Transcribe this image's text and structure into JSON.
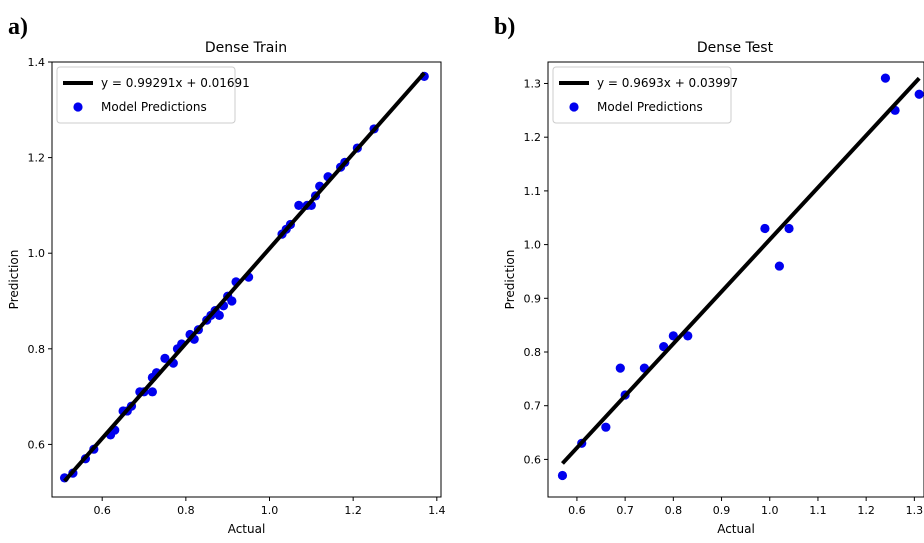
{
  "chart_data": [
    {
      "panel_label": "a)",
      "type": "scatter",
      "title": "Dense Train",
      "xlabel": "Actual",
      "ylabel": "Prediction",
      "xlim": [
        0.48,
        1.41
      ],
      "ylim": [
        0.49,
        1.4
      ],
      "xticks": [
        "0.6",
        "0.8",
        "1.0",
        "1.2",
        "1.4"
      ],
      "xtick_values": [
        0.6,
        0.8,
        1.0,
        1.2,
        1.4
      ],
      "yticks": [
        "0.6",
        "0.8",
        "1.0",
        "1.2",
        "1.4"
      ],
      "ytick_values": [
        0.6,
        0.8,
        1.0,
        1.2,
        1.4
      ],
      "legend_position": "top-left",
      "colors": {
        "points": "#0000ee",
        "fit_line": "#000000"
      },
      "series": [
        {
          "name": "Model Predictions",
          "points": [
            [
              0.51,
              0.53
            ],
            [
              0.53,
              0.54
            ],
            [
              0.56,
              0.57
            ],
            [
              0.58,
              0.59
            ],
            [
              0.62,
              0.62
            ],
            [
              0.63,
              0.63
            ],
            [
              0.65,
              0.67
            ],
            [
              0.66,
              0.67
            ],
            [
              0.67,
              0.68
            ],
            [
              0.69,
              0.71
            ],
            [
              0.7,
              0.71
            ],
            [
              0.72,
              0.71
            ],
            [
              0.72,
              0.74
            ],
            [
              0.73,
              0.75
            ],
            [
              0.75,
              0.78
            ],
            [
              0.77,
              0.77
            ],
            [
              0.78,
              0.8
            ],
            [
              0.79,
              0.81
            ],
            [
              0.81,
              0.83
            ],
            [
              0.82,
              0.82
            ],
            [
              0.83,
              0.84
            ],
            [
              0.85,
              0.86
            ],
            [
              0.86,
              0.87
            ],
            [
              0.87,
              0.88
            ],
            [
              0.88,
              0.87
            ],
            [
              0.89,
              0.89
            ],
            [
              0.9,
              0.91
            ],
            [
              0.91,
              0.9
            ],
            [
              0.92,
              0.94
            ],
            [
              0.95,
              0.95
            ],
            [
              1.03,
              1.04
            ],
            [
              1.04,
              1.05
            ],
            [
              1.05,
              1.06
            ],
            [
              1.07,
              1.1
            ],
            [
              1.09,
              1.1
            ],
            [
              1.1,
              1.1
            ],
            [
              1.11,
              1.12
            ],
            [
              1.12,
              1.14
            ],
            [
              1.14,
              1.16
            ],
            [
              1.17,
              1.18
            ],
            [
              1.18,
              1.19
            ],
            [
              1.21,
              1.22
            ],
            [
              1.25,
              1.26
            ],
            [
              1.37,
              1.37
            ]
          ]
        },
        {
          "name": "y = 0.99291x + 0.01691",
          "line": {
            "slope": 0.99291,
            "intercept": 0.01691,
            "x_range": [
              0.51,
              1.37
            ]
          }
        }
      ]
    },
    {
      "panel_label": "b)",
      "type": "scatter",
      "title": "Dense Test",
      "xlabel": "Actual",
      "ylabel": "Prediction",
      "xlim": [
        0.54,
        1.32
      ],
      "ylim": [
        0.53,
        1.34
      ],
      "xticks": [
        "0.6",
        "0.7",
        "0.8",
        "0.9",
        "1.0",
        "1.1",
        "1.2",
        "1.3"
      ],
      "xtick_values": [
        0.6,
        0.7,
        0.8,
        0.9,
        1.0,
        1.1,
        1.2,
        1.3
      ],
      "yticks": [
        "0.6",
        "0.7",
        "0.8",
        "0.9",
        "1.0",
        "1.1",
        "1.2",
        "1.3"
      ],
      "ytick_values": [
        0.6,
        0.7,
        0.8,
        0.9,
        1.0,
        1.1,
        1.2,
        1.3
      ],
      "legend_position": "top-left",
      "colors": {
        "points": "#0000ee",
        "fit_line": "#000000"
      },
      "series": [
        {
          "name": "Model Predictions",
          "points": [
            [
              0.57,
              0.57
            ],
            [
              0.61,
              0.63
            ],
            [
              0.66,
              0.66
            ],
            [
              0.69,
              0.77
            ],
            [
              0.7,
              0.72
            ],
            [
              0.74,
              0.77
            ],
            [
              0.78,
              0.81
            ],
            [
              0.8,
              0.83
            ],
            [
              0.83,
              0.83
            ],
            [
              0.99,
              1.03
            ],
            [
              1.02,
              0.96
            ],
            [
              1.04,
              1.03
            ],
            [
              1.24,
              1.31
            ],
            [
              1.26,
              1.25
            ],
            [
              1.31,
              1.28
            ]
          ]
        },
        {
          "name": "y = 0.9693x + 0.03997",
          "line": {
            "slope": 0.9693,
            "intercept": 0.03997,
            "x_range": [
              0.57,
              1.31
            ]
          }
        }
      ]
    }
  ]
}
